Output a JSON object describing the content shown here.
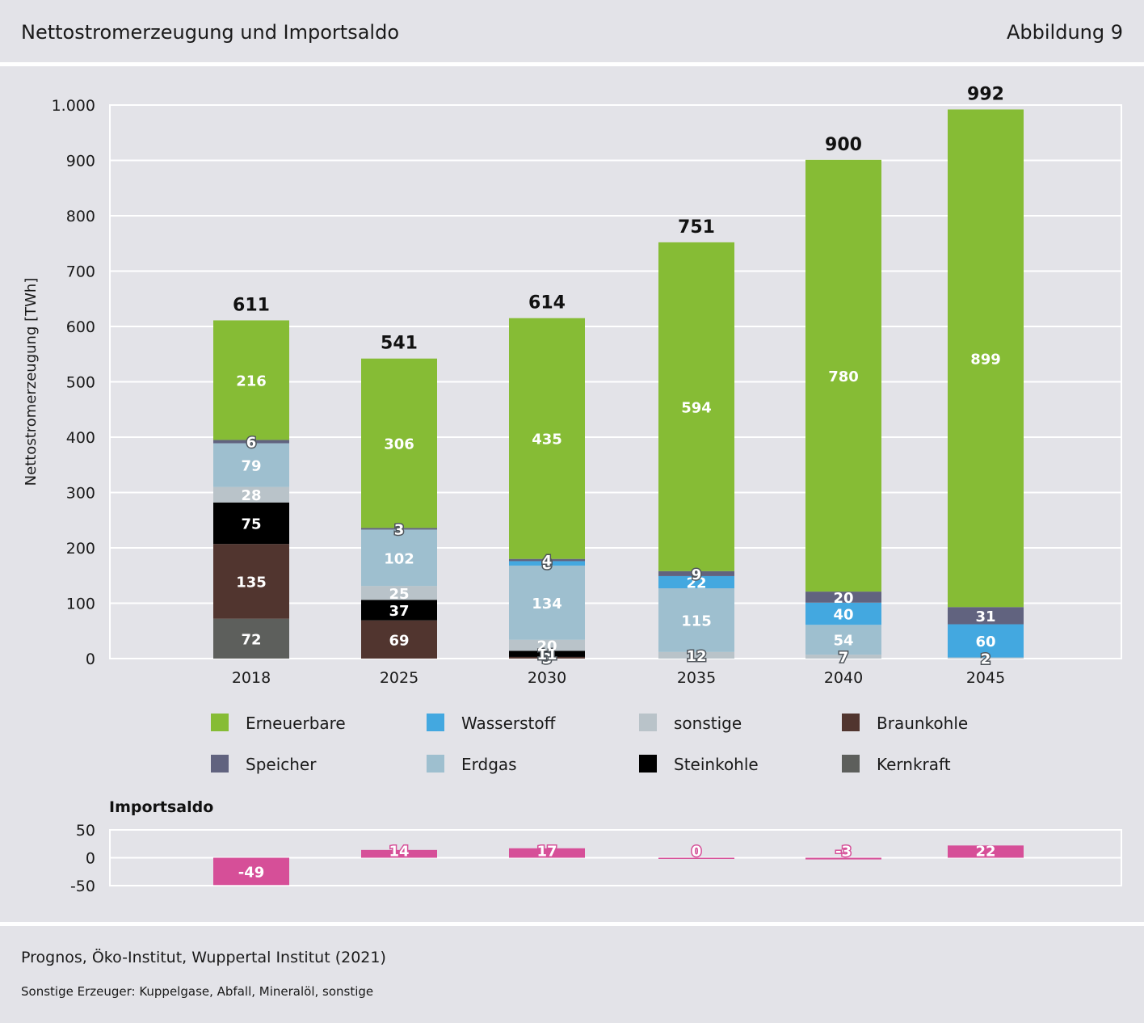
{
  "header": {
    "title": "Nettostromerzeugung und Importsaldo",
    "figure_number": "Abbildung 9"
  },
  "footer": {
    "source": "Prognos, Öko-Institut, Wuppertal Institut (2021)",
    "note": "Sonstige Erzeuger: Kuppelgase, Abfall, Mineralöl, sonstige"
  },
  "chart_data": [
    {
      "type": "bar",
      "stacked": true,
      "ylabel": "Nettostromerzeugung [TWh]",
      "ylim": [
        0,
        1000
      ],
      "yticks": [
        0,
        100,
        200,
        300,
        400,
        500,
        600,
        700,
        800,
        900,
        1000
      ],
      "ytick_labels": [
        "0",
        "100",
        "200",
        "300",
        "400",
        "500",
        "600",
        "700",
        "800",
        "900",
        "1.000"
      ],
      "grid": true,
      "legend_position": "bottom",
      "categories": [
        "2018",
        "2025",
        "2030",
        "2035",
        "2040",
        "2045"
      ],
      "totals": [
        611,
        541,
        614,
        751,
        900,
        992
      ],
      "series": [
        {
          "name": "Kernkraft",
          "color": "#5d5f5c",
          "values": [
            72,
            0,
            0,
            0,
            0,
            0
          ],
          "labels": [
            "72",
            "",
            "",
            "",
            "",
            ""
          ],
          "label_color": "#ffffff"
        },
        {
          "name": "Braunkohle",
          "color": "#51352f",
          "values": [
            135,
            69,
            3,
            0,
            0,
            0
          ],
          "labels": [
            "135",
            "69",
            "3",
            "",
            "",
            ""
          ],
          "label_color": "#ffffff"
        },
        {
          "name": "Steinkohle",
          "color": "#000000",
          "values": [
            75,
            37,
            11,
            0,
            0,
            0
          ],
          "labels": [
            "75",
            "37",
            "11",
            "",
            "",
            ""
          ],
          "label_color": "#ffffff"
        },
        {
          "name": "sonstige",
          "color": "#b9c3c9",
          "values": [
            28,
            25,
            20,
            12,
            7,
            2
          ],
          "labels": [
            "28",
            "25",
            "20",
            "12",
            "7",
            "2"
          ],
          "label_color": "#ffffff"
        },
        {
          "name": "Erdgas",
          "color": "#9ebfcf",
          "values": [
            79,
            102,
            134,
            115,
            54,
            0
          ],
          "labels": [
            "79",
            "102",
            "134",
            "115",
            "54",
            ""
          ],
          "label_color": "#ffffff"
        },
        {
          "name": "Wasserstoff",
          "color": "#43a8e0",
          "values": [
            0,
            0,
            8,
            22,
            40,
            60
          ],
          "labels": [
            "",
            "",
            "8",
            "22",
            "40",
            "60"
          ],
          "label_color": "#ffffff"
        },
        {
          "name": "Speicher",
          "color": "#61637f",
          "values": [
            6,
            3,
            4,
            9,
            20,
            31
          ],
          "labels": [
            "6",
            "3",
            "4",
            "9",
            "20",
            "31"
          ],
          "label_color": "#ffffff"
        },
        {
          "name": "Erneuerbare",
          "color": "#86bc35",
          "values": [
            216,
            306,
            435,
            594,
            780,
            899
          ],
          "labels": [
            "216",
            "306",
            "435",
            "594",
            "780",
            "899"
          ],
          "label_color": "#ffffff"
        }
      ],
      "legend_order": [
        "Erneuerbare",
        "Wasserstoff",
        "sonstige",
        "Braunkohle",
        "Speicher",
        "Erdgas",
        "Steinkohle",
        "Kernkraft"
      ]
    },
    {
      "type": "bar",
      "title": "Importsaldo",
      "ylim": [
        -50,
        50
      ],
      "yticks": [
        50,
        0,
        -50
      ],
      "ytick_labels": [
        "50",
        "0",
        "-50"
      ],
      "grid": true,
      "categories": [
        "2018",
        "2025",
        "2030",
        "2035",
        "2040",
        "2045"
      ],
      "values": [
        -49,
        14,
        17,
        0,
        -3,
        22
      ],
      "labels": [
        "-49",
        "14",
        "17",
        "0",
        "-3",
        "22"
      ],
      "color": "#d64f98"
    }
  ]
}
